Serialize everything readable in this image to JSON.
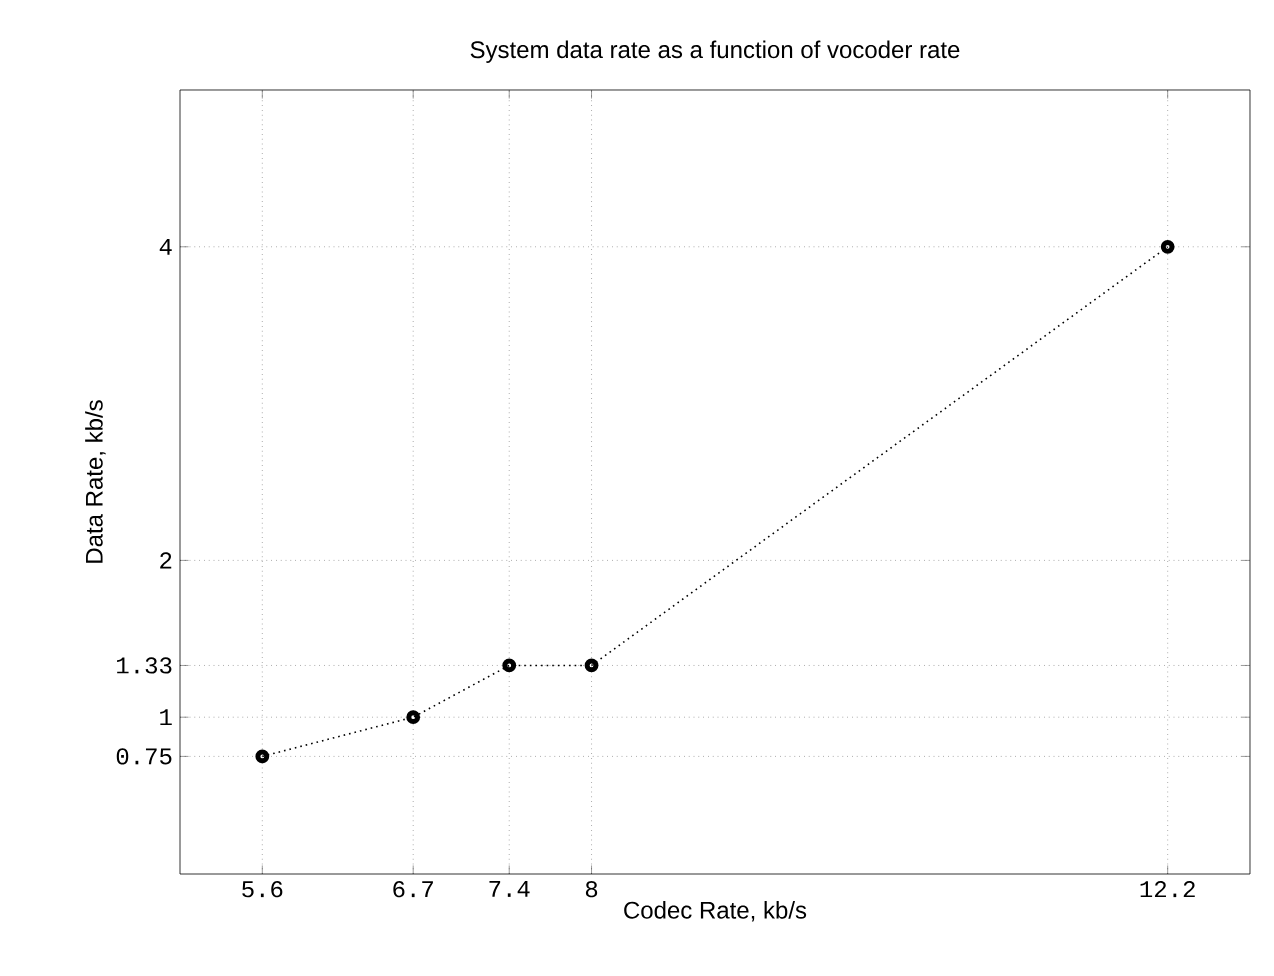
{
  "chart_data": {
    "type": "line",
    "title": "System data rate as a function of vocoder rate",
    "xlabel": "Codec Rate, kb/s",
    "ylabel": "Data Rate, kb/s",
    "x": [
      5.6,
      6.7,
      7.4,
      8,
      12.2
    ],
    "values": [
      0.75,
      1,
      1.33,
      1.33,
      4
    ],
    "color": "#000000",
    "xlim": [
      5,
      12.8
    ],
    "ylim": [
      0,
      5
    ],
    "xticks": [
      5.6,
      6.7,
      7.4,
      8,
      12.2
    ],
    "yticks": [
      0.75,
      1,
      1.33,
      2,
      4
    ],
    "grid": true,
    "marker": "circle",
    "line_style": "dotted"
  }
}
